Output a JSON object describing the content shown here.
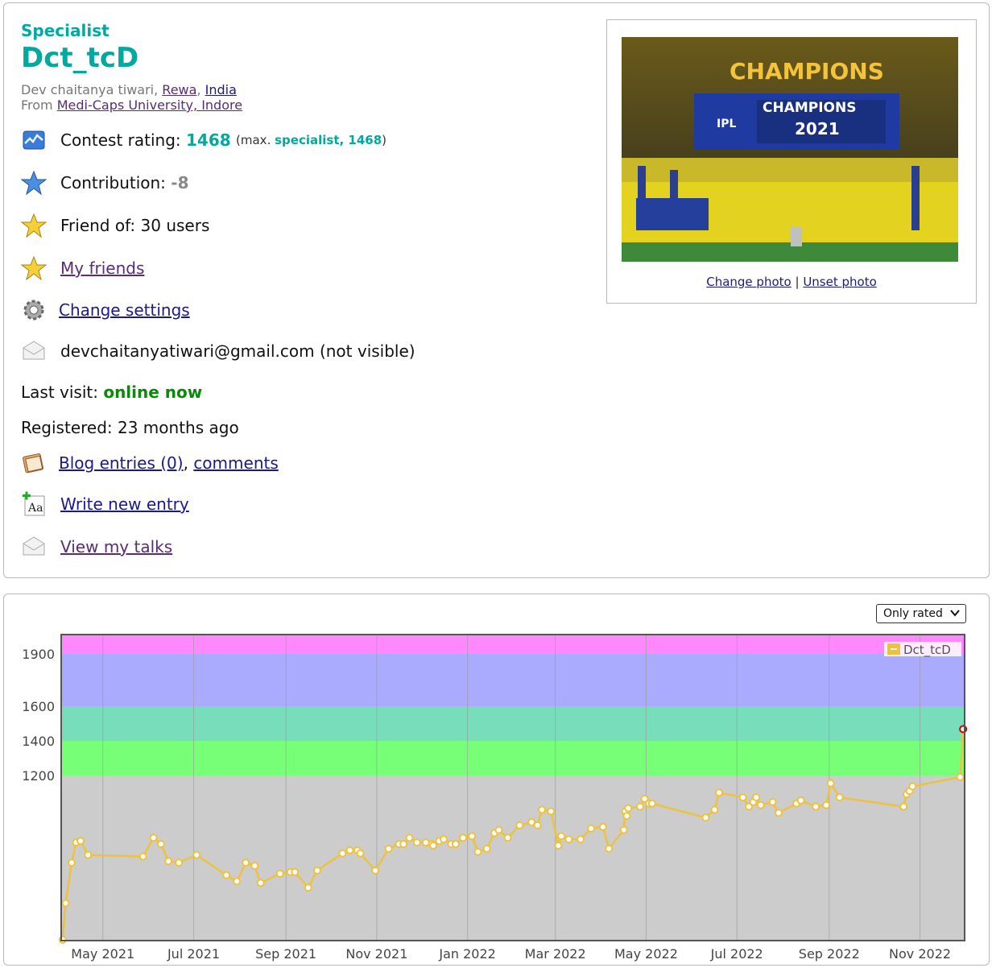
{
  "profile": {
    "rank": "Specialist",
    "handle": "Dct_tcD",
    "name": "Dev chaitanya tiwari",
    "city": "Rewa",
    "country": "India",
    "from_label": "From",
    "organization": "Medi-Caps University, Indore",
    "contest_rating_label": "Contest rating:",
    "contest_rating": "1468",
    "max_prefix": "(max.",
    "max_rank_value": "specialist, 1468",
    "max_suffix": ")",
    "contribution_label": "Contribution:",
    "contribution": "-8",
    "friend_of": "Friend of: 30 users",
    "my_friends": "My friends",
    "change_settings": "Change settings",
    "email": "devchaitanyatiwari@gmail.com (not visible)",
    "last_visit_label": "Last visit:",
    "last_visit": "online now",
    "registered": "Registered: 23 months ago",
    "blog_entries": "Blog entries (0)",
    "comments": "comments",
    "write_new_entry": "Write new entry",
    "view_my_talks": "View my talks",
    "change_photo": "Change photo",
    "separator": "|",
    "unset_photo": "Unset photo",
    "photo_banner_top": "CHAMPIONS",
    "photo_banner_main": "CHAMPIONS",
    "photo_banner_year": "2021",
    "photo_badge": "IPL"
  },
  "filter": {
    "selected": "Only rated"
  },
  "colors": {
    "accent": "#03a89e",
    "online": "#0a8a0a",
    "band_newbie": "#cccccc",
    "band_pupil": "#77ff77",
    "band_specialist": "#77ddbb",
    "band_expert": "#aaaaff",
    "band_cm": "#ff88ff",
    "line": "#edc240"
  },
  "chart_data": {
    "type": "line",
    "series": [
      {
        "name": "Dct_tcD",
        "x": [
          "2021-04-04",
          "2021-04-06",
          "2021-04-10",
          "2021-04-13",
          "2021-04-16",
          "2021-04-21",
          "2021-05-28",
          "2021-06-04",
          "2021-06-09",
          "2021-06-14",
          "2021-06-21",
          "2021-07-03",
          "2021-07-23",
          "2021-07-30",
          "2021-08-05",
          "2021-08-11",
          "2021-08-15",
          "2021-08-28",
          "2021-09-04",
          "2021-09-07",
          "2021-09-16",
          "2021-09-22",
          "2021-10-09",
          "2021-10-14",
          "2021-10-19",
          "2021-10-21",
          "2021-10-31",
          "2021-11-09",
          "2021-11-16",
          "2021-11-19",
          "2021-11-23",
          "2021-11-28",
          "2021-12-04",
          "2021-12-08",
          "2021-12-09",
          "2021-12-13",
          "2021-12-16",
          "2021-12-21",
          "2021-12-24",
          "2021-12-29",
          "2022-01-04",
          "2022-01-08",
          "2022-01-14",
          "2022-01-19",
          "2022-01-22",
          "2022-01-28",
          "2022-02-05",
          "2022-02-13",
          "2022-02-17",
          "2022-02-20",
          "2022-02-26",
          "2022-03-03",
          "2022-03-05",
          "2022-03-10",
          "2022-03-18",
          "2022-03-25",
          "2022-04-02",
          "2022-04-06",
          "2022-04-16",
          "2022-04-17",
          "2022-04-18",
          "2022-04-19",
          "2022-04-27",
          "2022-04-30",
          "2022-05-03",
          "2022-05-05",
          "2022-06-10",
          "2022-06-16",
          "2022-06-19",
          "2022-07-05",
          "2022-07-09",
          "2022-07-12",
          "2022-07-14",
          "2022-07-17",
          "2022-07-25",
          "2022-07-29",
          "2022-08-10",
          "2022-08-13",
          "2022-08-23",
          "2022-08-30",
          "2022-09-02",
          "2022-09-08",
          "2022-10-21",
          "2022-10-23",
          "2022-10-25",
          "2022-10-27",
          "2022-11-28",
          "2022-11-30"
        ],
        "y": [
          145,
          380,
          640,
          770,
          780,
          690,
          680,
          800,
          760,
          650,
          640,
          690,
          560,
          520,
          640,
          620,
          510,
          570,
          580,
          580,
          480,
          590,
          700,
          720,
          720,
          700,
          590,
          730,
          760,
          760,
          800,
          770,
          770,
          760,
          750,
          780,
          790,
          760,
          760,
          800,
          810,
          710,
          730,
          830,
          850,
          800,
          880,
          900,
          880,
          980,
          970,
          750,
          810,
          790,
          790,
          860,
          870,
          730,
          850,
          970,
          940,
          990,
          1000,
          1050,
          1020,
          1020,
          930,
          980,
          1090,
          1060,
          1000,
          1030,
          1060,
          1010,
          1030,
          960,
          1020,
          1040,
          1000,
          1010,
          1150,
          1060,
          1000,
          1080,
          1100,
          1130,
          1190,
          1468
        ],
        "color": "#edc240"
      }
    ],
    "yticks": [
      1200,
      1400,
      1600,
      1900
    ],
    "xticks": [
      "May 2021",
      "Jul 2021",
      "Sep 2021",
      "Nov 2021",
      "Jan 2022",
      "Mar 2022",
      "May 2022",
      "Jul 2022",
      "Sep 2022",
      "Nov 2022"
    ],
    "xlim": [
      "2021-04-03",
      "2022-12-01"
    ],
    "rating_bands": [
      {
        "from": 0,
        "to": 1200,
        "color": "#cccccc"
      },
      {
        "from": 1200,
        "to": 1400,
        "color": "#77ff77"
      },
      {
        "from": 1400,
        "to": 1600,
        "color": "#77ddbb"
      },
      {
        "from": 1600,
        "to": 1900,
        "color": "#aaaaff"
      },
      {
        "from": 1900,
        "to": 2100,
        "color": "#ff88ff"
      }
    ],
    "legend": "top-right",
    "grid": true
  }
}
